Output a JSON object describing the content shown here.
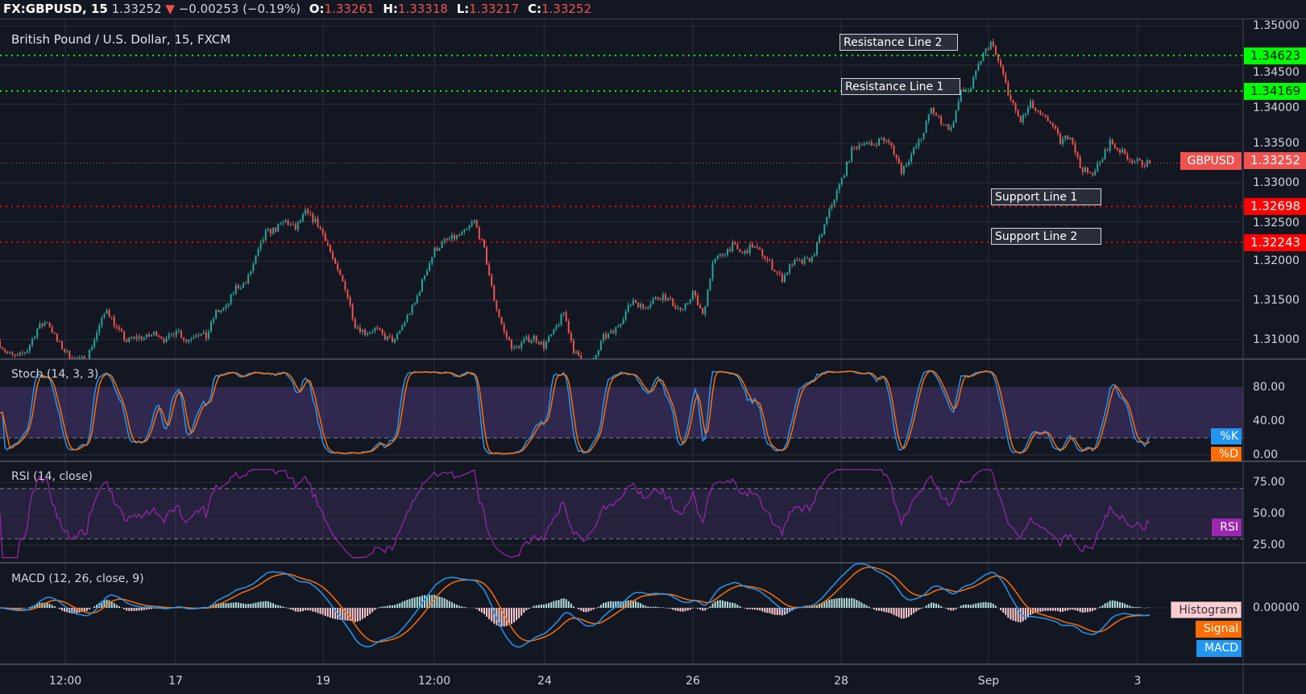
{
  "header": {
    "symbol": "FX:GBPUSD, 15",
    "last": "1.33252",
    "change": "−0.00253 (−0.19%)",
    "o_label": "O:",
    "o": "1.33261",
    "h_label": "H:",
    "h": "1.33318",
    "l_label": "L:",
    "l": "1.33217",
    "c_label": "C:",
    "c": "1.33252",
    "direction_icon": "triangle-down-icon"
  },
  "colors": {
    "background": "#131722",
    "grid": "#2a2e39",
    "up": "#26a69a",
    "down": "#ef5350",
    "resistance": "#00ff00",
    "support": "#ff0000",
    "stoch_k": "#2196f3",
    "stoch_d": "#ff6d00",
    "rsi": "#9c27b0",
    "macd": "#2196f3",
    "signal": "#ff6d00",
    "histogram_up": "#b2dfdb",
    "histogram_down": "#ffcdd2"
  },
  "main": {
    "title": "British Pound / U.S. Dollar, 15, FXCM",
    "price_ticks": [
      "1.35000",
      "1.34500",
      "1.34000",
      "1.33500",
      "1.33000",
      "1.32500",
      "1.32000",
      "1.31500",
      "1.31000"
    ],
    "current_label": "GBPUSD",
    "current_price": "1.33252",
    "levels": [
      {
        "name": "Resistance Line 2",
        "price": "1.34623",
        "kind": "resistance"
      },
      {
        "name": "Resistance Line 1",
        "price": "1.34169",
        "kind": "resistance"
      },
      {
        "name": "Support Line 1",
        "price": "1.32698",
        "kind": "support"
      },
      {
        "name": "Support Line 2",
        "price": "1.32243",
        "kind": "support"
      }
    ]
  },
  "stoch": {
    "title": "Stoch (14, 3, 3)",
    "ticks": [
      "80.00",
      "40.00",
      "0.00"
    ],
    "k_label": "%K",
    "d_label": "%D"
  },
  "rsi": {
    "title": "RSI (14, close)",
    "ticks": [
      "75.00",
      "50.00",
      "25.00"
    ],
    "label": "RSI"
  },
  "macd": {
    "title": "MACD (12, 26, close, 9)",
    "ticks": [
      "0.00000"
    ],
    "hist_label": "Histogram",
    "signal_label": "Signal",
    "macd_label": "MACD"
  },
  "time_axis": [
    "12:00",
    "17",
    "19",
    "12:00",
    "24",
    "26",
    "28",
    "Sep",
    "3"
  ],
  "chart_data": {
    "type": "candlestick",
    "title": "British Pound / U.S. Dollar, 15, FXCM",
    "ylim": [
      1.305,
      1.35
    ],
    "x_ticks": [
      "12:00",
      "17",
      "19",
      "12:00",
      "24",
      "26",
      "28",
      "Sep",
      "3"
    ],
    "grid": true,
    "approx_closes": [
      1.3098,
      1.3082,
      1.3077,
      1.3087,
      1.3114,
      1.3124,
      1.3098,
      1.3082,
      1.3072,
      1.3077,
      1.3109,
      1.314,
      1.3114,
      1.3098,
      1.3103,
      1.3103,
      1.3109,
      1.3098,
      1.3114,
      1.3098,
      1.3109,
      1.3103,
      1.3135,
      1.314,
      1.3167,
      1.3172,
      1.3204,
      1.3236,
      1.3241,
      1.3251,
      1.3241,
      1.3262,
      1.3251,
      1.323,
      1.3193,
      1.3167,
      1.3119,
      1.3109,
      1.3114,
      1.3103,
      1.3098,
      1.3124,
      1.3146,
      1.3183,
      1.3214,
      1.3225,
      1.323,
      1.3236,
      1.3251,
      1.3214,
      1.3151,
      1.3109,
      1.3087,
      1.3098,
      1.3103,
      1.3092,
      1.3109,
      1.3135,
      1.3087,
      1.3066,
      1.3072,
      1.3103,
      1.3109,
      1.313,
      1.3151,
      1.314,
      1.3151,
      1.3156,
      1.3146,
      1.3135,
      1.3161,
      1.313,
      1.3198,
      1.3209,
      1.322,
      1.3209,
      1.322,
      1.3209,
      1.3193,
      1.3177,
      1.3198,
      1.3198,
      1.3204,
      1.3236,
      1.3273,
      1.3304,
      1.3341,
      1.3352,
      1.3347,
      1.3357,
      1.3347,
      1.3315,
      1.3336,
      1.3357,
      1.3394,
      1.3378,
      1.3368,
      1.3415,
      1.3421,
      1.3458,
      1.3479,
      1.3447,
      1.3405,
      1.3378,
      1.34,
      1.3384,
      1.3378,
      1.3352,
      1.3362,
      1.332,
      1.331,
      1.3325,
      1.3352,
      1.3341,
      1.3331,
      1.3325
    ],
    "last_close": 1.33252,
    "indicators": {
      "stoch": {
        "params": [
          14,
          3,
          3
        ],
        "bands": [
          20,
          80
        ],
        "ylim": [
          0,
          100
        ]
      },
      "rsi": {
        "params": [
          14
        ],
        "bands": [
          30,
          70
        ],
        "ylim": [
          15,
          85
        ]
      },
      "macd": {
        "params": [
          12,
          26,
          9
        ]
      }
    }
  }
}
